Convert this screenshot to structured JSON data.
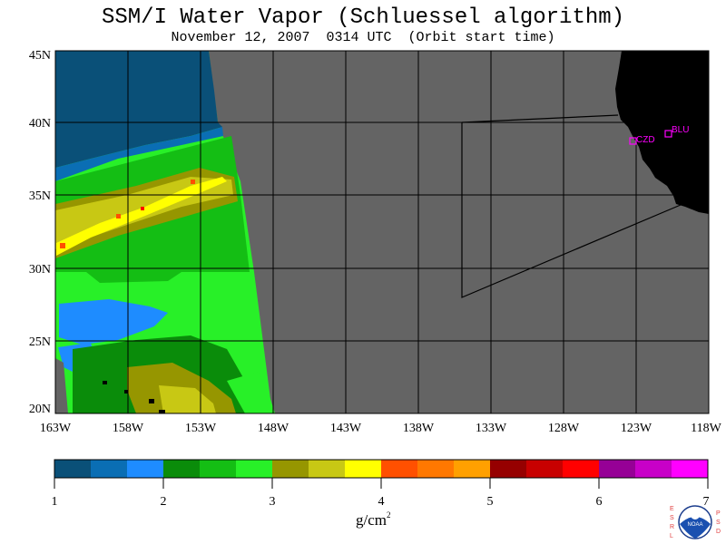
{
  "title": "SSM/I Water Vapor (Schluessel algorithm)",
  "subtitle": "November 12, 2007  0314 UTC  (Orbit start time)",
  "map": {
    "lat_labels": [
      "45N",
      "40N",
      "35N",
      "30N",
      "25N",
      "20N"
    ],
    "lon_labels": [
      "163W",
      "158W",
      "153W",
      "148W",
      "143W",
      "138W",
      "133W",
      "128W",
      "123W",
      "118W"
    ],
    "stations": [
      {
        "id": "CZD",
        "marker": "square"
      },
      {
        "id": "BLU",
        "marker": "square"
      }
    ],
    "colors": {
      "nodata": "#646464",
      "land": "#000000",
      "grid": "#000000",
      "station": "#ff00ff"
    }
  },
  "colorbar": {
    "units_base": "g/cm",
    "units_exp": "2",
    "tick_labels": [
      "1",
      "2",
      "3",
      "4",
      "5",
      "6",
      "7"
    ],
    "colors": [
      "#0a5078",
      "#0a6eb4",
      "#1e8cff",
      "#0a8c0a",
      "#14be14",
      "#28f028",
      "#969600",
      "#c8c814",
      "#ffff00",
      "#ff5000",
      "#ff7800",
      "#ffa000",
      "#960000",
      "#c80000",
      "#ff0000",
      "#960096",
      "#c800c8",
      "#ff00ff"
    ]
  },
  "logo": {
    "left_letters": "ESRL",
    "right_letters": "PSD",
    "text": "NOAA"
  }
}
